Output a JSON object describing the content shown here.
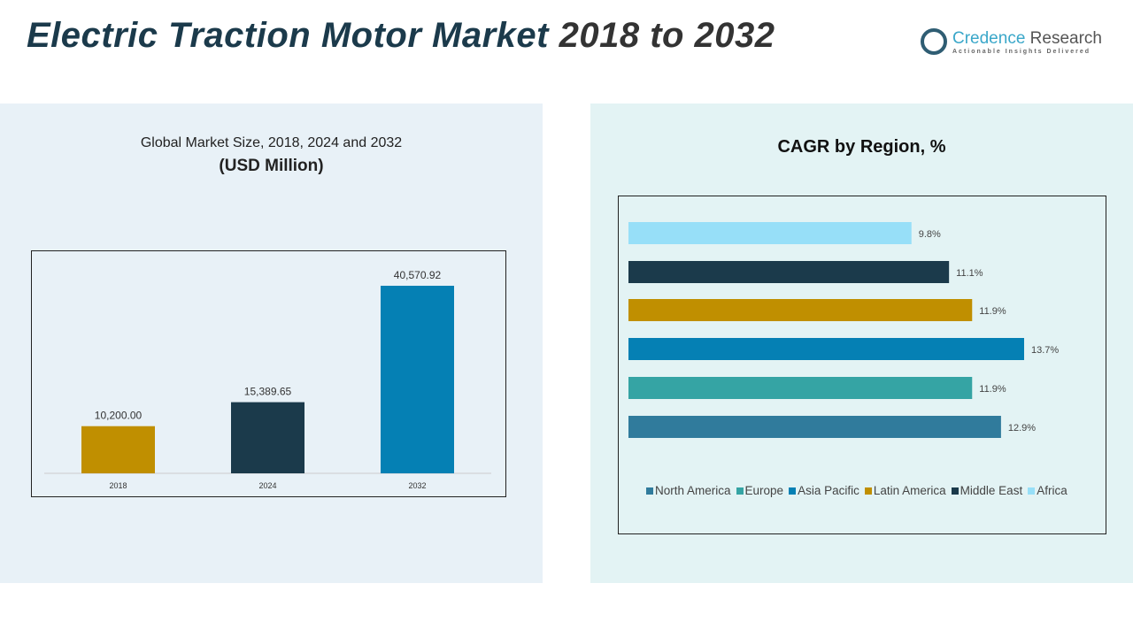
{
  "header": {
    "title_main": "Electric Traction Motor Market",
    "title_years": "2018 to 2032"
  },
  "logo": {
    "name_a": "Credence",
    "name_b": "Research",
    "tagline": "Actionable Insights Delivered"
  },
  "chart_data": [
    {
      "type": "bar",
      "title": "Global Market Size, 2018, 2024 and 2032",
      "subtitle": "(USD Million)",
      "categories": [
        "2018",
        "2024",
        "2032"
      ],
      "values": [
        10200.0,
        15389.65,
        40570.92
      ],
      "labels": [
        "10,200.00",
        "15,389.65",
        "40,570.92"
      ],
      "colors": [
        "#c08f00",
        "#1b3a4b",
        "#0580b4"
      ],
      "ylim": [
        0,
        45000
      ],
      "grid": false
    },
    {
      "type": "bar",
      "orientation": "horizontal",
      "title": "CAGR by Region, %",
      "categories": [
        "Africa",
        "Middle East",
        "Latin America",
        "Asia Pacific",
        "Europe",
        "North America"
      ],
      "values": [
        9.8,
        11.1,
        11.9,
        13.7,
        11.9,
        12.9
      ],
      "labels": [
        "9.8%",
        "11.1%",
        "11.9%",
        "13.7%",
        "11.9%",
        "12.9%"
      ],
      "colors": [
        "#97dff8",
        "#1b3a4b",
        "#c08f00",
        "#0580b4",
        "#35a4a4",
        "#307b9c"
      ],
      "legend": {
        "position": "bottom",
        "items": [
          {
            "name": "North America",
            "color": "#307b9c"
          },
          {
            "name": "Europe",
            "color": "#35a4a4"
          },
          {
            "name": "Asia Pacific",
            "color": "#0580b4"
          },
          {
            "name": "Latin America",
            "color": "#c08f00"
          },
          {
            "name": "Middle East",
            "color": "#1b3a4b"
          },
          {
            "name": "Africa",
            "color": "#97dff8"
          }
        ]
      },
      "grid": false
    }
  ]
}
